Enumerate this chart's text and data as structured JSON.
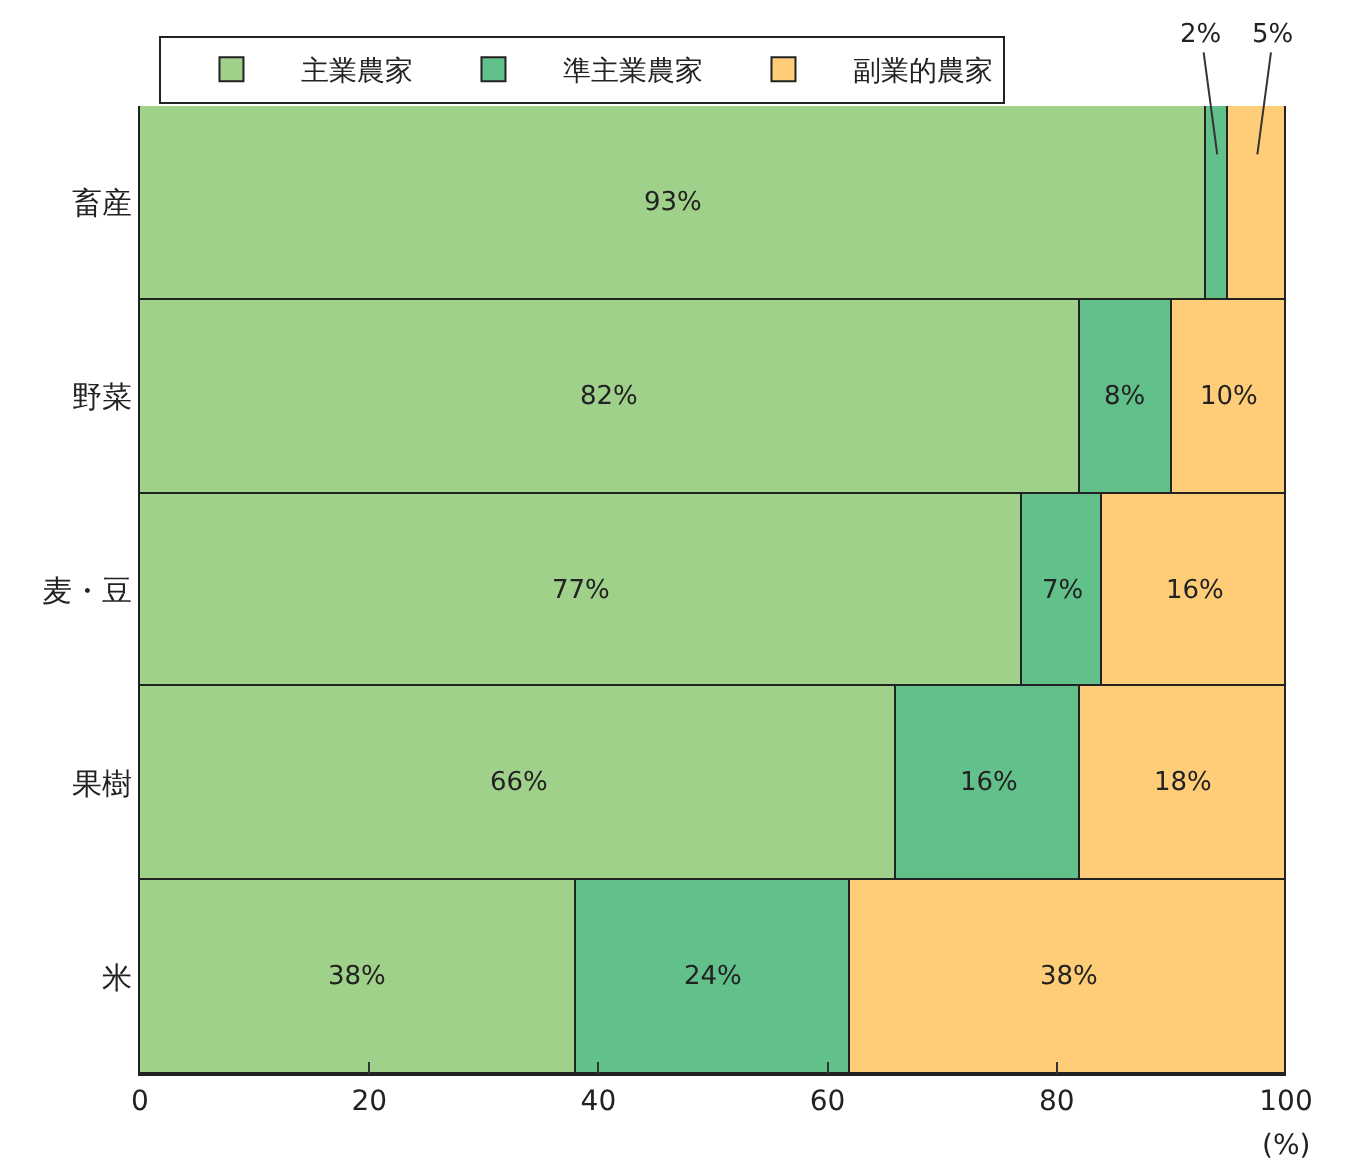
{
  "chart_data": {
    "type": "bar",
    "orientation": "horizontal",
    "stacked": true,
    "categories": [
      "畜産",
      "野菜",
      "麦・豆",
      "果樹",
      "米"
    ],
    "series": [
      {
        "name": "主業農家",
        "color": "#a0d18a",
        "values": [
          93,
          82,
          77,
          66,
          38
        ],
        "value_labels": [
          "93%",
          "82%",
          "77%",
          "66%",
          "38%"
        ]
      },
      {
        "name": "準主業農家",
        "color": "#62c08a",
        "values": [
          2,
          8,
          7,
          16,
          24
        ],
        "value_labels": [
          "2%",
          "8%",
          "7%",
          "16%",
          "24%"
        ]
      },
      {
        "name": "副業的農家",
        "color": "#ffcc77",
        "values": [
          5,
          10,
          16,
          18,
          38
        ],
        "value_labels": [
          "5%",
          "10%",
          "16%",
          "18%",
          "38%"
        ]
      }
    ],
    "xlim": [
      0,
      100
    ],
    "xticks": [
      0,
      20,
      40,
      60,
      80,
      100
    ],
    "xlabel": "(%)",
    "legend": "top"
  }
}
